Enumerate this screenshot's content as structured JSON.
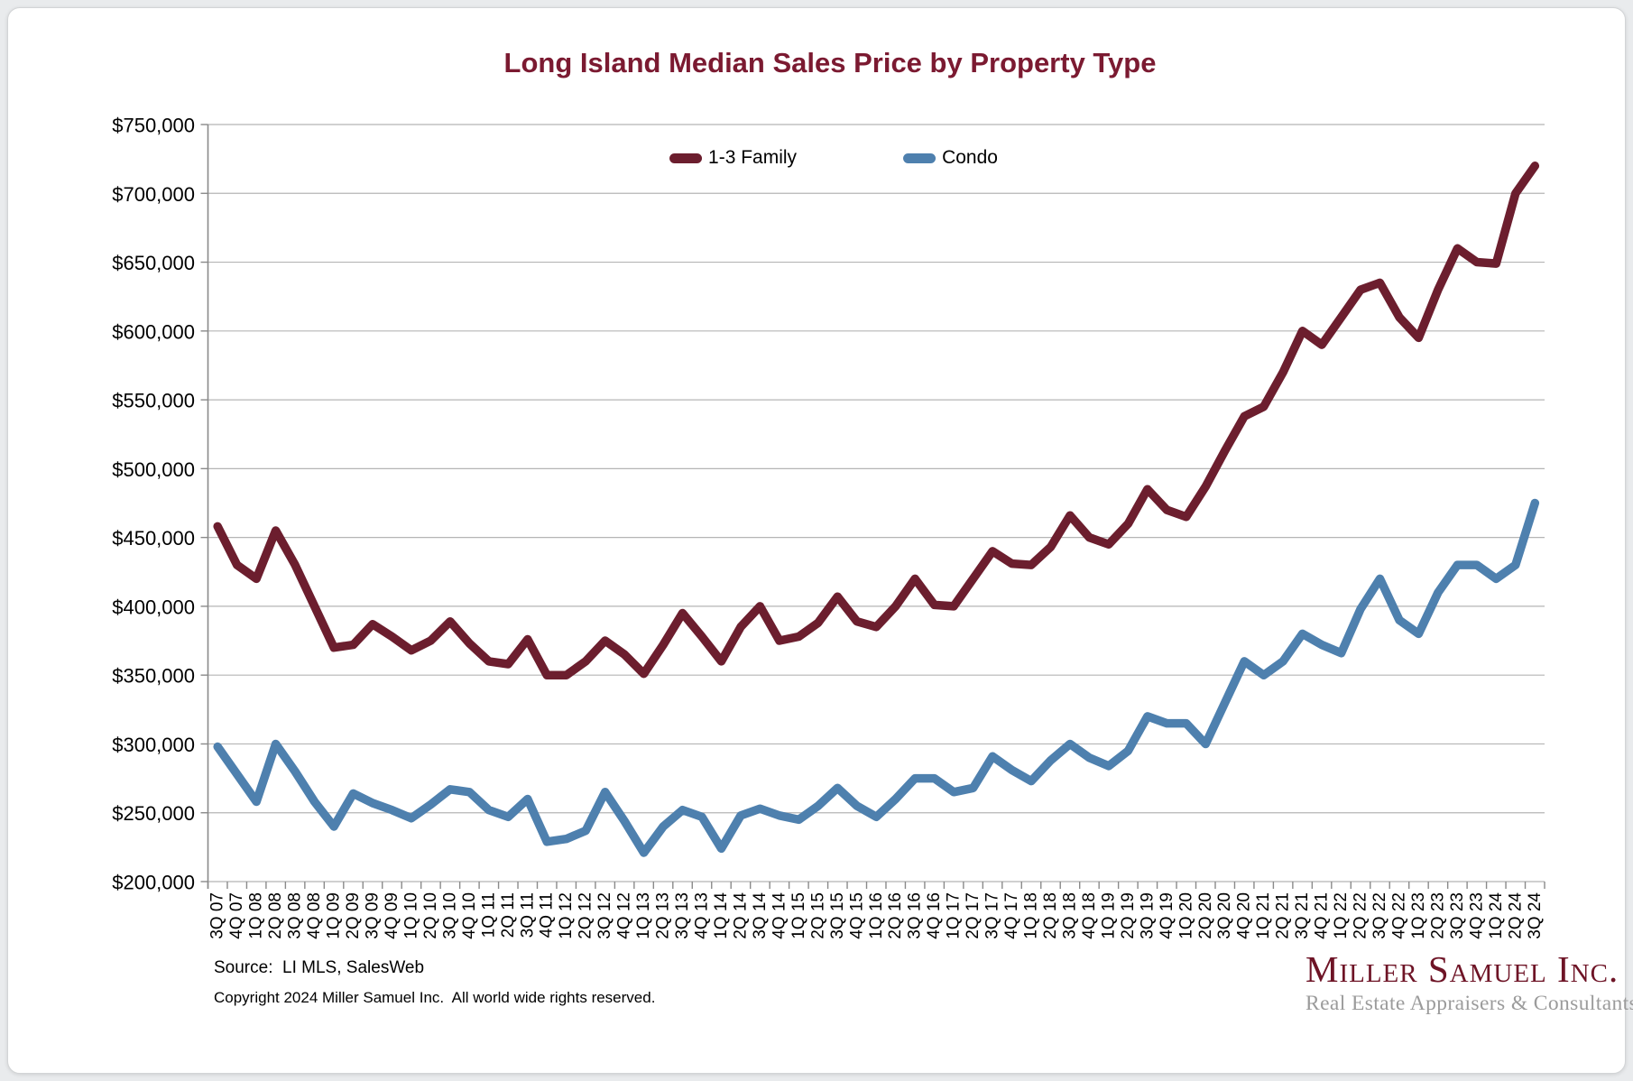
{
  "page": {
    "background_color": "#e9ebed",
    "card_color": "#ffffff"
  },
  "chart_data": {
    "type": "line",
    "title": "Long Island Median Sales Price by Property Type",
    "title_color": "#7b1a31",
    "grid": "horizontal",
    "gridline_color": "#b5b5b5",
    "axis_color": "#8a8a8a",
    "legend_position": "top-center",
    "ylim": [
      200000,
      750000
    ],
    "ytick_step": 50000,
    "ytick_labels": [
      "$200,000",
      "$250,000",
      "$300,000",
      "$350,000",
      "$400,000",
      "$450,000",
      "$500,000",
      "$550,000",
      "$600,000",
      "$650,000",
      "$700,000",
      "$750,000"
    ],
    "categories": [
      "3Q 07",
      "4Q 07",
      "1Q 08",
      "2Q 08",
      "3Q 08",
      "4Q 08",
      "1Q 09",
      "2Q 09",
      "3Q 09",
      "4Q 09",
      "1Q 10",
      "2Q 10",
      "3Q 10",
      "4Q 10",
      "1Q 11",
      "2Q 11",
      "3Q 11",
      "4Q 11",
      "1Q 12",
      "2Q 12",
      "3Q 12",
      "4Q 12",
      "1Q 13",
      "2Q 13",
      "3Q 13",
      "4Q 13",
      "1Q 14",
      "2Q 14",
      "3Q 14",
      "4Q 14",
      "1Q 15",
      "2Q 15",
      "3Q 15",
      "4Q 15",
      "1Q 16",
      "2Q 16",
      "3Q 16",
      "4Q 16",
      "1Q 17",
      "2Q 17",
      "3Q 17",
      "4Q 17",
      "1Q 18",
      "2Q 18",
      "3Q 18",
      "4Q 18",
      "1Q 19",
      "2Q 19",
      "3Q 19",
      "4Q 19",
      "1Q 20",
      "2Q 20",
      "3Q 20",
      "4Q 20",
      "1Q 21",
      "2Q 21",
      "3Q 21",
      "4Q 21",
      "1Q 22",
      "2Q 22",
      "3Q 22",
      "4Q 22",
      "1Q 23",
      "2Q 23",
      "3Q 23",
      "4Q 23",
      "1Q 24",
      "2Q 24",
      "3Q 24"
    ],
    "series": [
      {
        "name": "1-3 Family",
        "color": "#6c1e2e",
        "values": [
          458000,
          430000,
          420000,
          455000,
          430000,
          400000,
          370000,
          372000,
          387000,
          378000,
          368000,
          375000,
          389000,
          373000,
          360000,
          358000,
          376000,
          350000,
          350000,
          360000,
          375000,
          365000,
          351000,
          372000,
          395000,
          378000,
          360000,
          385000,
          400000,
          375000,
          378000,
          388000,
          407000,
          389000,
          385000,
          400000,
          420000,
          401000,
          400000,
          420000,
          440000,
          431000,
          430000,
          443000,
          466000,
          450000,
          445000,
          460000,
          485000,
          470000,
          465000,
          487000,
          513000,
          538000,
          545000,
          570000,
          600000,
          590000,
          610000,
          630000,
          635000,
          610000,
          595000,
          630000,
          660000,
          650000,
          649000,
          700000,
          720000
        ]
      },
      {
        "name": "Condo",
        "color": "#4e80ae",
        "values": [
          298000,
          278000,
          258000,
          300000,
          280000,
          258000,
          240000,
          264000,
          257000,
          252000,
          246000,
          256000,
          267000,
          265000,
          252000,
          247000,
          260000,
          229000,
          231000,
          237000,
          265000,
          244000,
          221000,
          240000,
          252000,
          247000,
          224000,
          248000,
          253000,
          248000,
          245000,
          255000,
          268000,
          255000,
          247000,
          260000,
          275000,
          275000,
          265000,
          268000,
          291000,
          281000,
          273000,
          288000,
          300000,
          290000,
          284000,
          295000,
          320000,
          315000,
          315000,
          300000,
          330000,
          360000,
          350000,
          360000,
          380000,
          372000,
          366000,
          398000,
          420000,
          390000,
          380000,
          410000,
          430000,
          430000,
          420000,
          430000,
          475000
        ]
      }
    ]
  },
  "footer": {
    "source": "Source:  LI MLS, SalesWeb",
    "copyright": "Copyright 2024 Miller Samuel Inc.  All world wide rights reserved."
  },
  "logo": {
    "name": "Miller Samuel Inc.",
    "name_color": "#6e1426",
    "tagline": "Real Estate Appraisers & Consultants"
  }
}
